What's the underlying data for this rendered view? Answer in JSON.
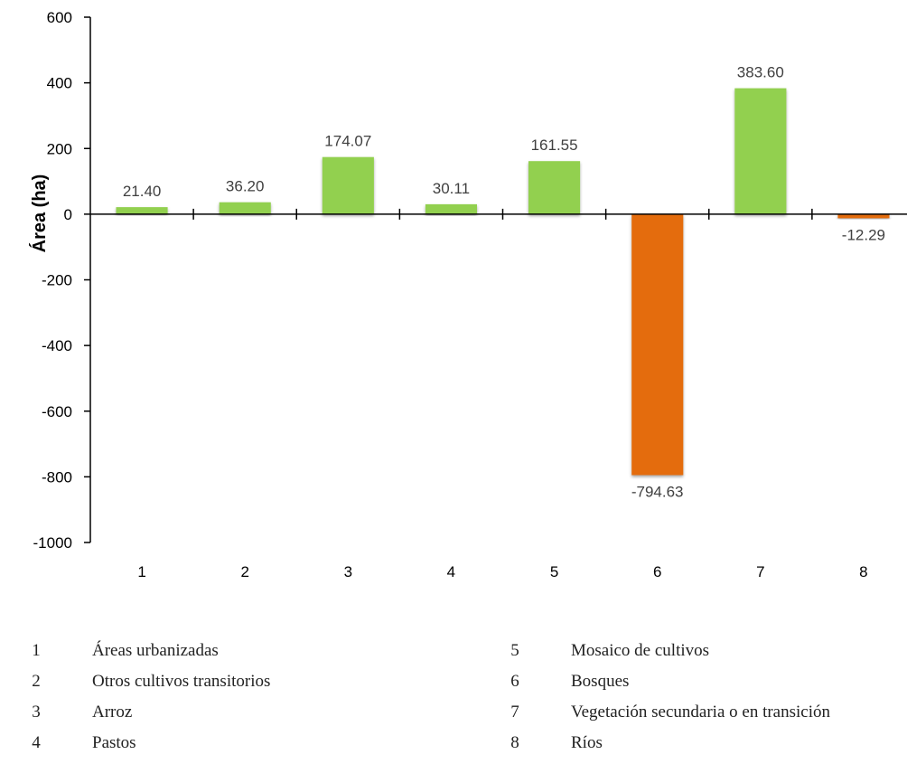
{
  "chart_data": {
    "type": "bar",
    "categories": [
      "1",
      "2",
      "3",
      "4",
      "5",
      "6",
      "7",
      "8"
    ],
    "values": [
      21.4,
      36.2,
      174.07,
      30.11,
      161.55,
      -794.63,
      383.6,
      -12.29
    ],
    "data_labels": [
      "21.40",
      "36.20",
      "174.07",
      "30.11",
      "161.55",
      "-794.63",
      "383.60",
      "-12.29"
    ],
    "title": "",
    "xlabel": "",
    "ylabel": "Área (ha)",
    "ylim": [
      -1000,
      600
    ],
    "yticks": [
      600,
      400,
      200,
      0,
      -200,
      -400,
      -600,
      -800,
      -1000
    ],
    "grid": false,
    "colors": {
      "positive": "#92d050",
      "negative": "#e46c0a",
      "axis": "#000000",
      "label": "#404040"
    }
  },
  "legend": {
    "left": [
      {
        "num": "1",
        "label": "Áreas urbanizadas"
      },
      {
        "num": "2",
        "label": "Otros cultivos transitorios"
      },
      {
        "num": "3",
        "label": "Arroz"
      },
      {
        "num": "4",
        "label": "Pastos"
      }
    ],
    "right": [
      {
        "num": "5",
        "label": "Mosaico de cultivos"
      },
      {
        "num": "6",
        "label": "Bosques"
      },
      {
        "num": "7",
        "label": "Vegetación secundaria o en transición"
      },
      {
        "num": "8",
        "label": "Ríos"
      }
    ]
  }
}
